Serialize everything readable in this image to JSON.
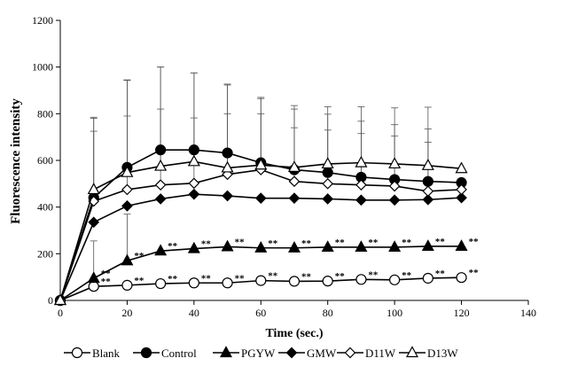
{
  "chart_data": {
    "type": "line",
    "title": "",
    "xlabel": "Time (sec.)",
    "ylabel": "Fluorescence intensity",
    "xlim": [
      0,
      140
    ],
    "ylim": [
      0,
      1200
    ],
    "x_ticks": [
      0,
      20,
      40,
      60,
      80,
      100,
      120,
      140
    ],
    "y_ticks": [
      0,
      200,
      400,
      600,
      800,
      1000,
      1200
    ],
    "x": [
      0,
      10,
      20,
      30,
      40,
      50,
      60,
      70,
      80,
      90,
      100,
      110,
      120
    ],
    "significance_label": "**",
    "series": [
      {
        "name": "Blank",
        "marker": "circle-open",
        "color": "#000000",
        "values": [
          0,
          60,
          65,
          72,
          75,
          75,
          85,
          82,
          83,
          90,
          88,
          95,
          98
        ],
        "error": [
          0,
          0,
          0,
          0,
          0,
          0,
          0,
          0,
          0,
          0,
          0,
          0,
          0
        ],
        "significant": [
          false,
          true,
          true,
          true,
          true,
          true,
          true,
          true,
          true,
          true,
          true,
          true,
          true
        ]
      },
      {
        "name": "Control",
        "marker": "circle-filled",
        "color": "#000000",
        "values": [
          0,
          440,
          570,
          645,
          645,
          632,
          590,
          560,
          548,
          528,
          518,
          510,
          505
        ],
        "error": [
          0,
          345,
          375,
          355,
          330,
          295,
          280,
          260,
          250,
          240,
          235,
          225,
          0
        ],
        "significant": [
          false,
          false,
          false,
          false,
          false,
          false,
          false,
          false,
          false,
          false,
          false,
          false,
          false
        ]
      },
      {
        "name": "PGYW",
        "marker": "triangle-filled",
        "color": "#000000",
        "values": [
          0,
          95,
          170,
          212,
          222,
          230,
          225,
          225,
          228,
          228,
          228,
          232,
          232
        ],
        "error": [
          0,
          160,
          200,
          0,
          0,
          0,
          0,
          0,
          0,
          0,
          0,
          0,
          0
        ],
        "significant": [
          false,
          true,
          true,
          true,
          true,
          true,
          true,
          true,
          true,
          true,
          true,
          true,
          true
        ]
      },
      {
        "name": "GMW",
        "marker": "diamond-filled",
        "color": "#000000",
        "values": [
          0,
          335,
          405,
          435,
          455,
          448,
          438,
          438,
          435,
          430,
          430,
          432,
          440
        ],
        "error": [
          0,
          0,
          0,
          0,
          0,
          0,
          0,
          0,
          0,
          0,
          0,
          0,
          0
        ],
        "significant": [
          false,
          false,
          false,
          false,
          false,
          false,
          false,
          false,
          false,
          false,
          false,
          false,
          false
        ]
      },
      {
        "name": "D11W",
        "marker": "diamond-open",
        "color": "#000000",
        "values": [
          0,
          425,
          475,
          495,
          502,
          540,
          560,
          510,
          500,
          495,
          490,
          468,
          475
        ],
        "error": [
          0,
          300,
          315,
          325,
          280,
          260,
          240,
          230,
          230,
          220,
          215,
          210,
          0
        ],
        "significant": [
          false,
          false,
          false,
          false,
          false,
          false,
          false,
          false,
          false,
          false,
          false,
          false,
          false
        ]
      },
      {
        "name": "D13W",
        "marker": "triangle-open",
        "color": "#000000",
        "values": [
          0,
          475,
          548,
          575,
          595,
          568,
          580,
          570,
          585,
          590,
          585,
          578,
          565
        ],
        "error": [
          0,
          305,
          395,
          425,
          380,
          355,
          285,
          265,
          245,
          240,
          240,
          250,
          0
        ],
        "significant": [
          false,
          false,
          false,
          false,
          false,
          false,
          false,
          false,
          false,
          false,
          false,
          false,
          false
        ]
      }
    ],
    "legend": [
      "Blank",
      "Control",
      "PGYW",
      "GMW",
      "D11W",
      "D13W"
    ],
    "legend_position": "bottom"
  }
}
